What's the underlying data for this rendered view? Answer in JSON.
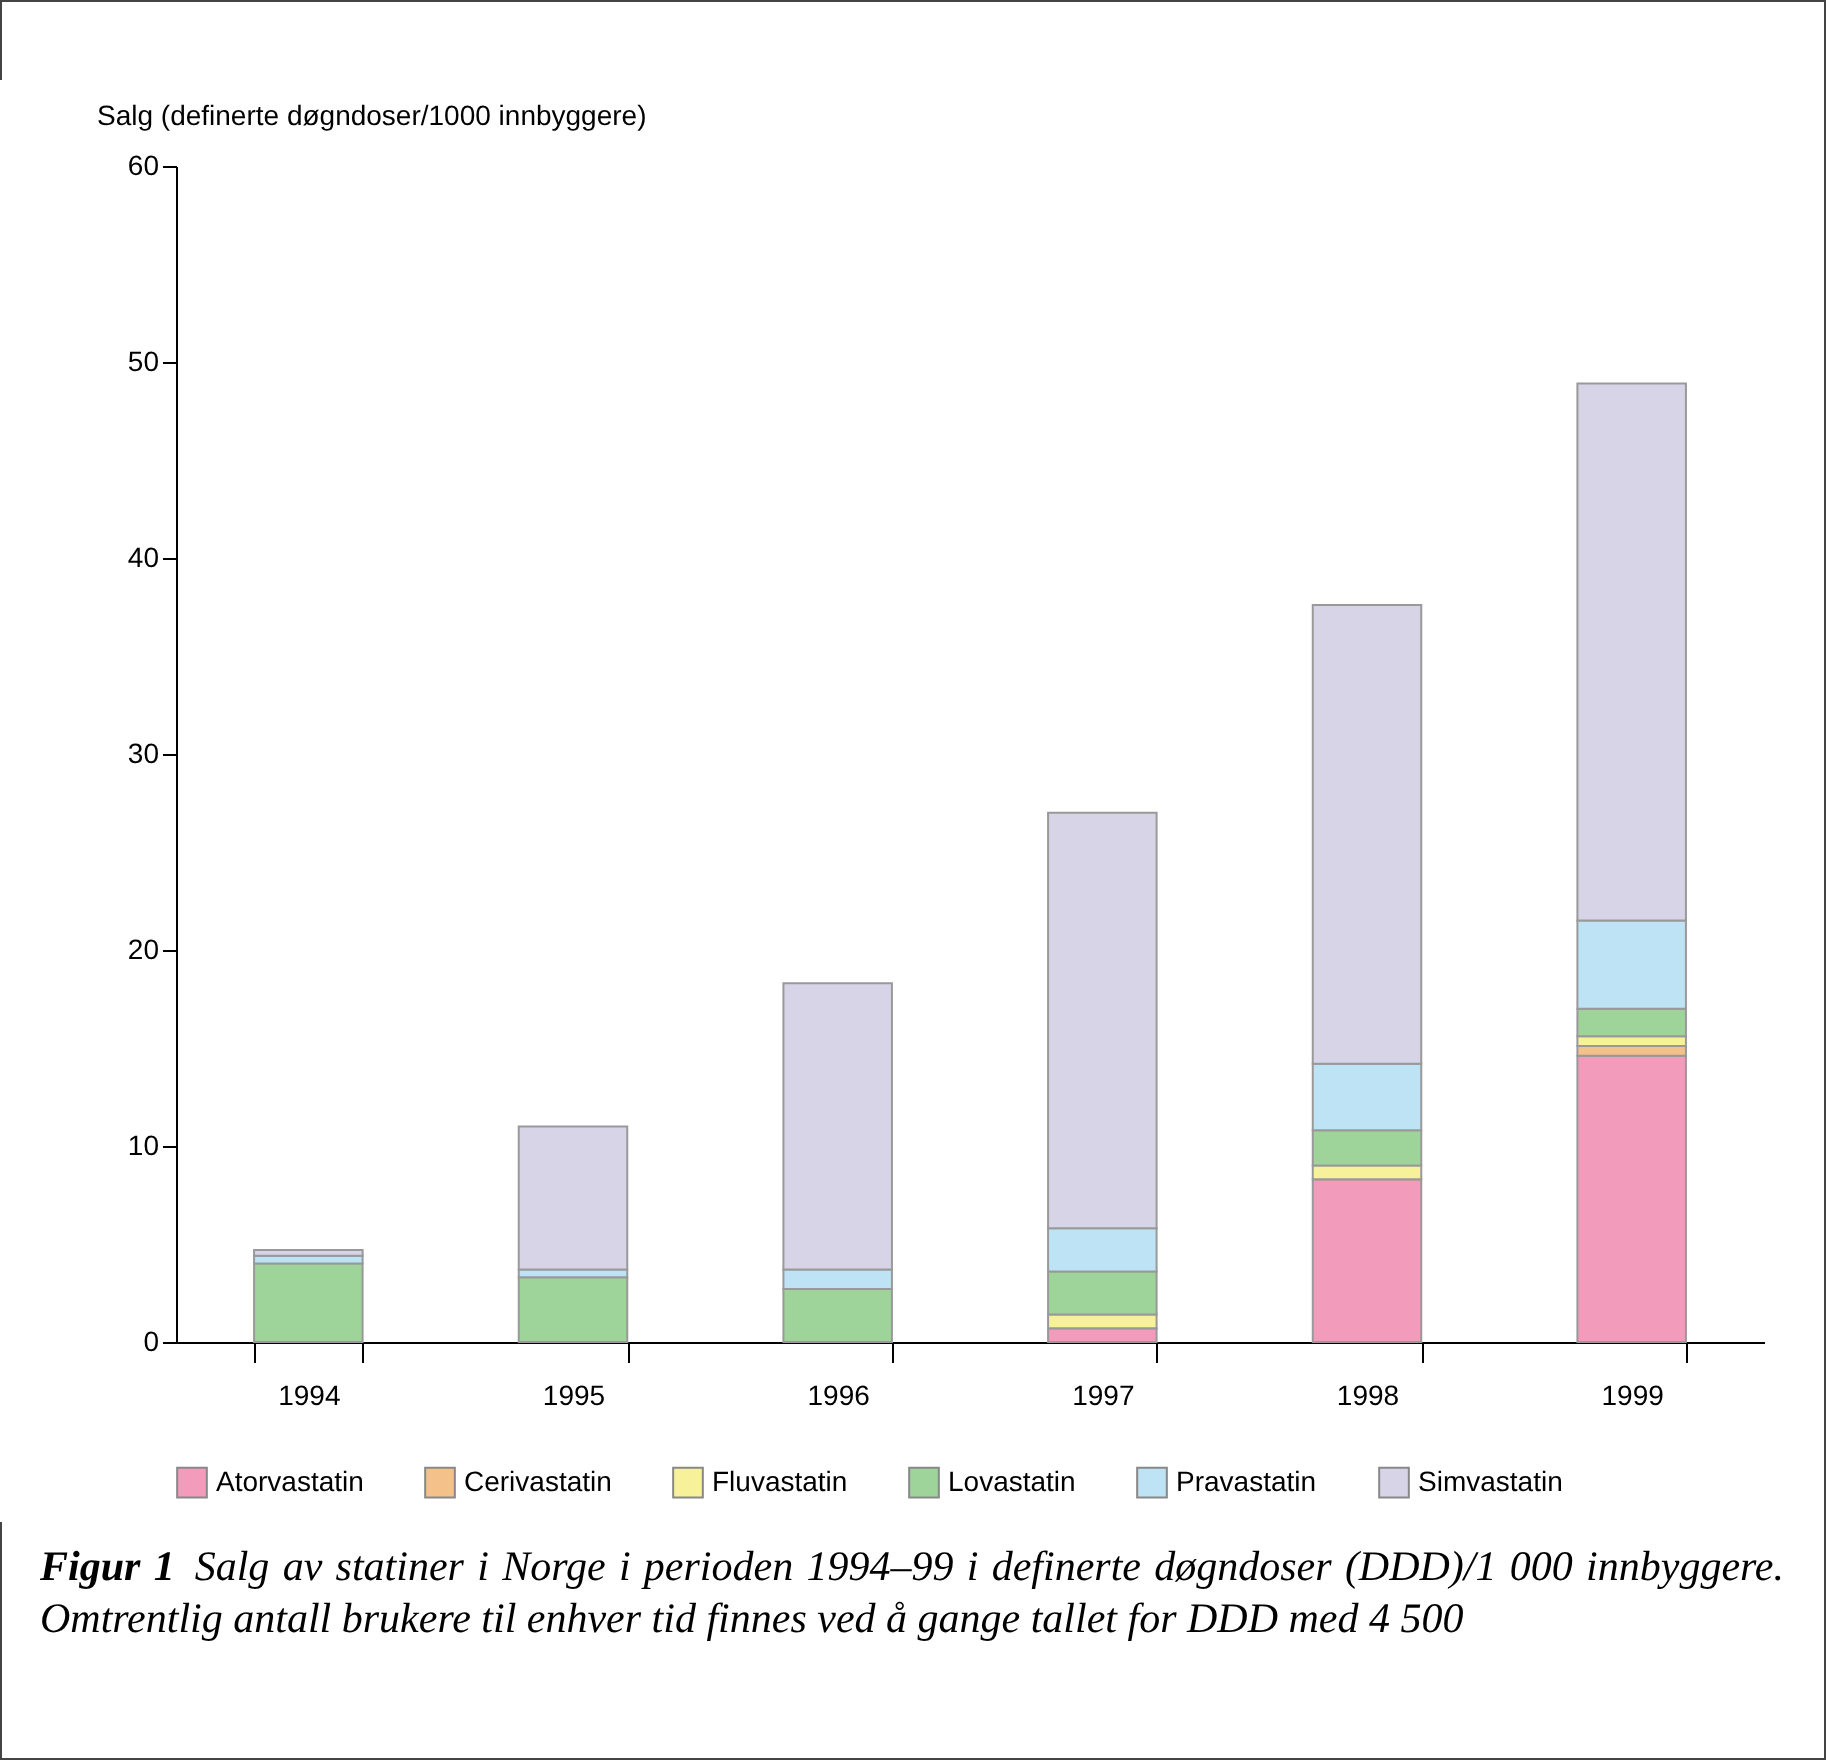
{
  "chart_data": {
    "type": "bar",
    "stacked": true,
    "ylabel": "Salg (definerte døgndoser/1000 innbyggere)",
    "categories": [
      "1994",
      "1995",
      "1996",
      "1997",
      "1998",
      "1999"
    ],
    "series": [
      {
        "name": "Atorvastatin",
        "color": "#f29bbb",
        "values": [
          0,
          0,
          0,
          0.7,
          8.3,
          14.6
        ]
      },
      {
        "name": "Cerivastatin",
        "color": "#f5c18a",
        "values": [
          0,
          0,
          0,
          0,
          0,
          0.5
        ]
      },
      {
        "name": "Fluvastatin",
        "color": "#f7f29a",
        "values": [
          0,
          0,
          0,
          0.7,
          0.7,
          0.5
        ]
      },
      {
        "name": "Lovastatin",
        "color": "#9ed49a",
        "values": [
          4.0,
          3.3,
          2.7,
          2.2,
          1.8,
          1.4
        ]
      },
      {
        "name": "Pravastatin",
        "color": "#bee3f5",
        "values": [
          0.4,
          0.4,
          1.0,
          2.2,
          3.4,
          4.5
        ]
      },
      {
        "name": "Simvastatin",
        "color": "#d8d4e8",
        "values": [
          0.3,
          7.3,
          14.6,
          21.2,
          23.4,
          27.4
        ]
      }
    ],
    "ylim": [
      0,
      60
    ],
    "yticks": [
      0,
      10,
      20,
      30,
      40,
      50,
      60
    ],
    "grid": false,
    "legend": "bottom",
    "annotations": [
      "Figur 1",
      "Salg av statiner i Norge i perioden 1994–99 i definerte døgndoser (DDD)/1 000 innbyggere. Omtrentlig antall brukere til enhver tid finnes ved å gange tallet for DDD med 4 500"
    ]
  }
}
